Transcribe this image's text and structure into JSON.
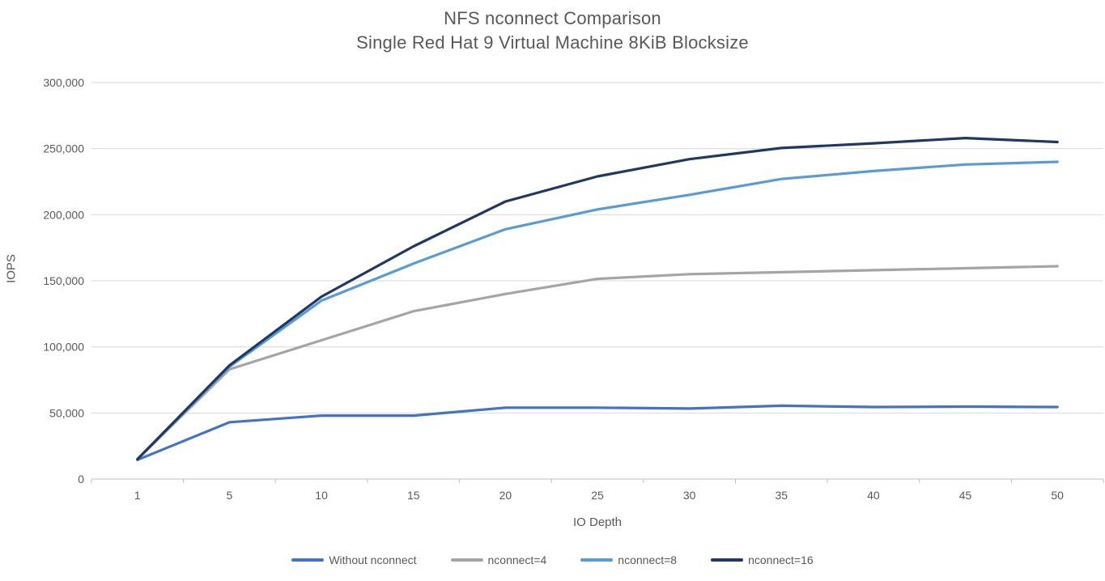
{
  "chart_data": {
    "type": "line",
    "title_line1": "NFS nconnect Comparison",
    "title_line2": "Single Red Hat 9 Virtual Machine 8KiB Blocksize",
    "xlabel": "IO Depth",
    "ylabel": "IOPS",
    "ylim": [
      0,
      300000
    ],
    "ytick_interval": 50000,
    "y_tick_labels": [
      "0",
      "50,000",
      "100,000",
      "150,000",
      "200,000",
      "250,000",
      "300,000"
    ],
    "categories": [
      "1",
      "5",
      "10",
      "15",
      "20",
      "25",
      "30",
      "35",
      "40",
      "45",
      "50"
    ],
    "grid": "horizontal",
    "legend_position": "bottom",
    "colors": {
      "grid": "#D9D9D9",
      "axis": "#BFBFBF",
      "text": "#595959"
    },
    "series": [
      {
        "name": "Without nconnect",
        "color": "#4472C4",
        "values": [
          14500,
          43000,
          48000,
          48000,
          54000,
          54000,
          53300,
          55500,
          54500,
          54800,
          54500
        ]
      },
      {
        "name": "nconnect=4",
        "color": "#A5A5A5",
        "values": [
          15000,
          83000,
          105000,
          127000,
          140000,
          151500,
          155000,
          156500,
          158000,
          159500,
          161000
        ]
      },
      {
        "name": "nconnect=8",
        "color": "#5B9BD5",
        "values": [
          15000,
          85000,
          135000,
          163000,
          189000,
          204000,
          215000,
          227000,
          233000,
          238000,
          240000
        ]
      },
      {
        "name": "nconnect=16",
        "color": "#1F3864",
        "values": [
          15000,
          86000,
          138000,
          176000,
          210000,
          229000,
          242000,
          250500,
          254000,
          258000,
          255000
        ]
      }
    ]
  }
}
